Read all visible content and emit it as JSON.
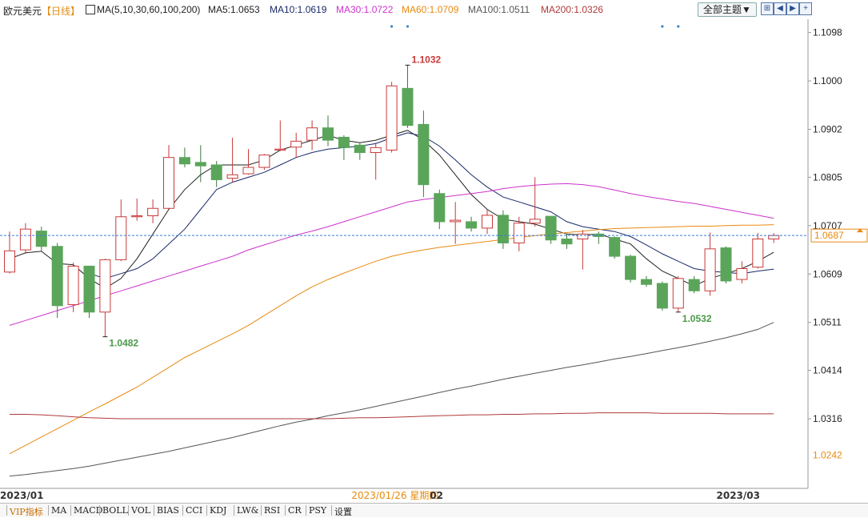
{
  "header": {
    "instrument": "欧元美元",
    "period": "【日线】",
    "ma_params": "MA(5,10,30,60,100,200)",
    "ma5": "MA5:1.0653",
    "ma10": "MA10:1.0619",
    "ma30": "MA30:1.0722",
    "ma60": "MA60:1.0709",
    "ma100": "MA100:1.0511",
    "ma200": "MA200:1.0326",
    "theme_button": "全部主题▼"
  },
  "colors": {
    "up": "#c83a3a",
    "down": "#5aa55a",
    "ma5": "#222222",
    "ma10": "#1a2a6a",
    "ma30": "#cc33cc",
    "ma60": "#e88a10",
    "ma100": "#555555",
    "ma200": "#b03a3a",
    "axis_text": "#222222",
    "last_price_text": "#e88a10"
  },
  "bottom_tabs": [
    "VIP指标",
    "MA",
    "MACD",
    "BOLL",
    "VOL",
    "BIAS",
    "CCI",
    "KDJ",
    "LW&",
    "RSI",
    "CR",
    "PSY",
    "设置"
  ],
  "chart_data": {
    "type": "candlestick",
    "title": "欧元美元【日线】",
    "ylim": [
      1.0175,
      1.1125
    ],
    "y_ticks": [
      "1.1098",
      "1.1000",
      "1.0902",
      "1.0805",
      "1.0707",
      "1.0609",
      "1.0511",
      "1.0414",
      "1.0316"
    ],
    "x_labels": [
      "2023/01",
      "2023/01/26 星期四",
      "02",
      "2023/03"
    ],
    "x_label_positions": [
      0,
      26,
      27,
      45
    ],
    "last_price": 1.0687,
    "last_price_label": "1.0687",
    "axis_bottom_label": "1.0242",
    "high_annotation": {
      "index": 25,
      "value": 1.1032,
      "label": "1.1032"
    },
    "low_annotations": [
      {
        "index": 6,
        "value": 1.0482,
        "label": "1.0482"
      },
      {
        "index": 42,
        "value": 1.0532,
        "label": "1.0532"
      }
    ],
    "event_marker_indices": [
      24,
      25,
      41,
      42
    ],
    "candles": [
      {
        "o": 1.0613,
        "h": 1.0695,
        "l": 1.061,
        "c": 1.0656
      },
      {
        "o": 1.0658,
        "h": 1.0712,
        "l": 1.065,
        "c": 1.07
      },
      {
        "o": 1.0696,
        "h": 1.0705,
        "l": 1.0655,
        "c": 1.0665
      },
      {
        "o": 1.0665,
        "h": 1.0672,
        "l": 1.052,
        "c": 1.0545
      },
      {
        "o": 1.0547,
        "h": 1.0632,
        "l": 1.0532,
        "c": 1.0625
      },
      {
        "o": 1.0625,
        "h": 1.0625,
        "l": 1.052,
        "c": 1.0532
      },
      {
        "o": 1.0532,
        "h": 1.064,
        "l": 1.0482,
        "c": 1.0638
      },
      {
        "o": 1.0638,
        "h": 1.076,
        "l": 1.0635,
        "c": 1.0725
      },
      {
        "o": 1.0725,
        "h": 1.0762,
        "l": 1.0717,
        "c": 1.0727
      },
      {
        "o": 1.0727,
        "h": 1.076,
        "l": 1.0712,
        "c": 1.0742
      },
      {
        "o": 1.0742,
        "h": 1.087,
        "l": 1.074,
        "c": 1.0845
      },
      {
        "o": 1.0845,
        "h": 1.0865,
        "l": 1.0825,
        "c": 1.0832
      },
      {
        "o": 1.0835,
        "h": 1.087,
        "l": 1.0795,
        "c": 1.0828
      },
      {
        "o": 1.083,
        "h": 1.0838,
        "l": 1.0785,
        "c": 1.08
      },
      {
        "o": 1.0803,
        "h": 1.0885,
        "l": 1.0795,
        "c": 1.081
      },
      {
        "o": 1.0812,
        "h": 1.0862,
        "l": 1.081,
        "c": 1.0825
      },
      {
        "o": 1.0825,
        "h": 1.0852,
        "l": 1.082,
        "c": 1.085
      },
      {
        "o": 1.086,
        "h": 1.092,
        "l": 1.0858,
        "c": 1.0862
      },
      {
        "o": 1.0866,
        "h": 1.0895,
        "l": 1.0845,
        "c": 1.0878
      },
      {
        "o": 1.088,
        "h": 1.092,
        "l": 1.086,
        "c": 1.0905
      },
      {
        "o": 1.0905,
        "h": 1.093,
        "l": 1.0868,
        "c": 1.088
      },
      {
        "o": 1.0886,
        "h": 1.089,
        "l": 1.084,
        "c": 1.0865
      },
      {
        "o": 1.087,
        "h": 1.0876,
        "l": 1.084,
        "c": 1.0855
      },
      {
        "o": 1.0855,
        "h": 1.0875,
        "l": 1.08,
        "c": 1.0865
      },
      {
        "o": 1.086,
        "h": 1.0998,
        "l": 1.0855,
        "c": 1.099
      },
      {
        "o": 1.0985,
        "h": 1.1032,
        "l": 1.0905,
        "c": 1.091
      },
      {
        "o": 1.0912,
        "h": 1.094,
        "l": 1.0765,
        "c": 1.079
      },
      {
        "o": 1.0772,
        "h": 1.078,
        "l": 1.07,
        "c": 1.0715
      },
      {
        "o": 1.0715,
        "h": 1.0755,
        "l": 1.067,
        "c": 1.0718
      },
      {
        "o": 1.0715,
        "h": 1.0725,
        "l": 1.0695,
        "c": 1.0702
      },
      {
        "o": 1.0702,
        "h": 1.074,
        "l": 1.069,
        "c": 1.0728
      },
      {
        "o": 1.0728,
        "h": 1.0738,
        "l": 1.066,
        "c": 1.0672
      },
      {
        "o": 1.0672,
        "h": 1.0725,
        "l": 1.0655,
        "c": 1.0712
      },
      {
        "o": 1.0712,
        "h": 1.0805,
        "l": 1.0705,
        "c": 1.072
      },
      {
        "o": 1.0726,
        "h": 1.0726,
        "l": 1.067,
        "c": 1.0678
      },
      {
        "o": 1.068,
        "h": 1.069,
        "l": 1.066,
        "c": 1.067
      },
      {
        "o": 1.068,
        "h": 1.0698,
        "l": 1.0618,
        "c": 1.069
      },
      {
        "o": 1.069,
        "h": 1.0695,
        "l": 1.067,
        "c": 1.0685
      },
      {
        "o": 1.0683,
        "h": 1.0685,
        "l": 1.064,
        "c": 1.0645
      },
      {
        "o": 1.0645,
        "h": 1.0648,
        "l": 1.0592,
        "c": 1.0598
      },
      {
        "o": 1.0598,
        "h": 1.0605,
        "l": 1.0583,
        "c": 1.0588
      },
      {
        "o": 1.059,
        "h": 1.0594,
        "l": 1.0535,
        "c": 1.054
      },
      {
        "o": 1.054,
        "h": 1.0605,
        "l": 1.0532,
        "c": 1.06
      },
      {
        "o": 1.0598,
        "h": 1.0605,
        "l": 1.057,
        "c": 1.0575
      },
      {
        "o": 1.0575,
        "h": 1.0693,
        "l": 1.0565,
        "c": 1.066
      },
      {
        "o": 1.0662,
        "h": 1.0665,
        "l": 1.059,
        "c": 1.0595
      },
      {
        "o": 1.0598,
        "h": 1.0635,
        "l": 1.059,
        "c": 1.062
      },
      {
        "o": 1.0623,
        "h": 1.0692,
        "l": 1.062,
        "c": 1.068
      },
      {
        "o": 1.068,
        "h": 1.0692,
        "l": 1.0672,
        "c": 1.0687
      }
    ],
    "series": [
      {
        "name": "MA5",
        "points": [
          1.064,
          1.0652,
          1.0655,
          1.063,
          1.0628,
          1.06,
          1.058,
          1.06,
          1.064,
          1.069,
          1.074,
          1.078,
          1.081,
          1.083,
          1.083,
          1.083,
          1.084,
          1.086,
          1.087,
          1.088,
          1.089,
          1.088,
          1.0875,
          1.088,
          1.089,
          1.09,
          1.088,
          1.085,
          1.081,
          1.077,
          1.074,
          1.072,
          1.0715,
          1.071,
          1.07,
          1.069,
          1.0688,
          1.069,
          1.068,
          1.067,
          1.064,
          1.0615,
          1.06,
          1.0585,
          1.06,
          1.061,
          1.062,
          1.0635,
          1.0653
        ]
      },
      {
        "name": "MA10",
        "points": [
          null,
          null,
          null,
          null,
          null,
          1.061,
          1.06,
          1.061,
          1.062,
          1.064,
          1.067,
          1.07,
          1.074,
          1.078,
          1.0795,
          1.0805,
          1.0815,
          1.083,
          1.0845,
          1.0855,
          1.0862,
          1.0865,
          1.0868,
          1.0873,
          1.0885,
          1.0895,
          1.0888,
          1.0868,
          1.084,
          1.081,
          1.0785,
          1.0765,
          1.0755,
          1.0745,
          1.0735,
          1.0715,
          1.0705,
          1.07,
          1.0695,
          1.0685,
          1.0668,
          1.065,
          1.0635,
          1.062,
          1.0615,
          1.0612,
          1.061,
          1.0615,
          1.0619
        ]
      },
      {
        "name": "MA30",
        "points": [
          1.0505,
          1.0515,
          1.0525,
          1.0535,
          1.0545,
          1.0555,
          1.0565,
          1.0575,
          1.0585,
          1.0595,
          1.0605,
          1.0615,
          1.0625,
          1.0635,
          1.0645,
          1.0658,
          1.0668,
          1.0678,
          1.0688,
          1.0696,
          1.0705,
          1.0715,
          1.0725,
          1.0735,
          1.0745,
          1.0755,
          1.076,
          1.0764,
          1.0768,
          1.0772,
          1.0776,
          1.0782,
          1.0786,
          1.0789,
          1.0791,
          1.0792,
          1.079,
          1.0786,
          1.0779,
          1.0772,
          1.0766,
          1.0761,
          1.0756,
          1.0752,
          1.0746,
          1.074,
          1.0734,
          1.0728,
          1.0722
        ]
      },
      {
        "name": "MA60",
        "points": [
          1.0245,
          1.0262,
          1.0279,
          1.0296,
          1.0313,
          1.033,
          1.0346,
          1.0363,
          1.038,
          1.04,
          1.042,
          1.044,
          1.0456,
          1.0472,
          1.0488,
          1.0505,
          1.0525,
          1.0545,
          1.0565,
          1.0583,
          1.0598,
          1.0611,
          1.0623,
          1.0635,
          1.0645,
          1.0652,
          1.0658,
          1.0663,
          1.0667,
          1.0671,
          1.0675,
          1.0679,
          1.0683,
          1.0687,
          1.069,
          1.0693,
          1.0696,
          1.0699,
          1.0701,
          1.0702,
          1.0703,
          1.0704,
          1.0705,
          1.0706,
          1.0706,
          1.0707,
          1.0708,
          1.0708,
          1.0709
        ]
      },
      {
        "name": "MA100",
        "points": [
          1.02,
          1.0203,
          1.0207,
          1.0211,
          1.0215,
          1.022,
          1.0226,
          1.0232,
          1.0238,
          1.0244,
          1.025,
          1.0257,
          1.0264,
          1.0271,
          1.0278,
          1.0286,
          1.0294,
          1.0302,
          1.0309,
          1.0315,
          1.0322,
          1.0328,
          1.0334,
          1.0341,
          1.0348,
          1.0355,
          1.0362,
          1.0369,
          1.0376,
          1.0382,
          1.0389,
          1.0396,
          1.0402,
          1.0408,
          1.0414,
          1.042,
          1.0425,
          1.0431,
          1.0437,
          1.0442,
          1.0448,
          1.0454,
          1.046,
          1.0466,
          1.0473,
          1.048,
          1.0488,
          1.0497,
          1.0511
        ]
      },
      {
        "name": "MA200",
        "points": [
          1.0325,
          1.0325,
          1.0324,
          1.0322,
          1.032,
          1.0318,
          1.0317,
          1.0316,
          1.0316,
          1.0316,
          1.0316,
          1.0316,
          1.0316,
          1.0316,
          1.0316,
          1.0316,
          1.0316,
          1.0316,
          1.0316,
          1.0316,
          1.0316,
          1.0317,
          1.0318,
          1.0318,
          1.0319,
          1.032,
          1.0321,
          1.0322,
          1.0323,
          1.0324,
          1.0324,
          1.0325,
          1.0325,
          1.0326,
          1.0326,
          1.0327,
          1.0327,
          1.0328,
          1.0328,
          1.0328,
          1.0328,
          1.0327,
          1.0327,
          1.0327,
          1.0327,
          1.0326,
          1.0326,
          1.0326,
          1.0326
        ]
      }
    ]
  }
}
